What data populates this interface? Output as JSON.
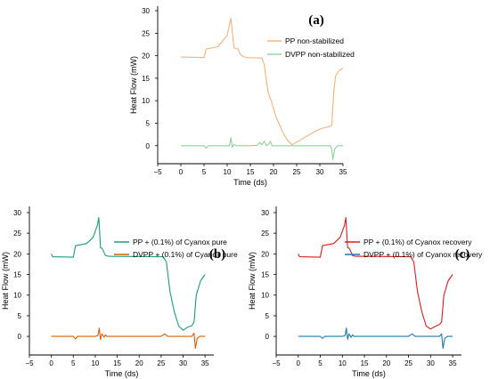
{
  "chart_data": [
    {
      "type": "line",
      "panel_label": "(a)",
      "xlabel": "Time (ds)",
      "ylabel": "Heat Flow (mW)",
      "xlim": [
        -5,
        35
      ],
      "ylim": [
        -4,
        31
      ],
      "xticks": [
        -5,
        0,
        5,
        10,
        15,
        20,
        25,
        30,
        35
      ],
      "yticks": [
        0,
        5,
        10,
        15,
        20,
        25,
        30
      ],
      "legend_position": "top-right",
      "series": [
        {
          "name": "PP non-stabilized",
          "color": "#f7b27a",
          "x": [
            0,
            5,
            5.5,
            8,
            10,
            10.5,
            10.8,
            11.2,
            11.5,
            12.3,
            12.8,
            13.5,
            14.2,
            17.5,
            18,
            18.8,
            19.5,
            20.5,
            22,
            23,
            24,
            25,
            27,
            29,
            30,
            31,
            32,
            32.6,
            33,
            33.4,
            34,
            35
          ],
          "y": [
            19.7,
            19.6,
            21.5,
            22,
            24.5,
            27,
            28.3,
            24.5,
            21.7,
            21.5,
            20.3,
            19.8,
            19.6,
            19.5,
            18,
            12,
            10,
            6.5,
            3,
            1.2,
            0.2,
            0.8,
            2,
            3.2,
            3.7,
            4,
            4.2,
            4.6,
            12,
            15.5,
            16.5,
            17.3
          ]
        },
        {
          "name": "DVPP non-stabilized",
          "color": "#8fd19c",
          "x": [
            0,
            5,
            5.5,
            6,
            10,
            10.5,
            10.8,
            11.1,
            11.5,
            12,
            15,
            16.5,
            17,
            17.5,
            18,
            18.5,
            19,
            19.3,
            19.7,
            20,
            25,
            30,
            32.3,
            32.6,
            32.8,
            33.2,
            33.8,
            35
          ],
          "y": [
            0,
            0,
            -0.5,
            0,
            0,
            0,
            1.8,
            -0.3,
            0.3,
            0,
            0,
            0.1,
            0.7,
            0.2,
            1,
            0,
            0.4,
            1,
            0,
            0,
            0,
            0,
            0,
            -1,
            -3.1,
            -0.8,
            0,
            0
          ]
        }
      ]
    },
    {
      "type": "line",
      "panel_label": "(b)",
      "xlabel": "Time (ds)",
      "ylabel": "Heat Flow (mW)",
      "xlim": [
        -5,
        37
      ],
      "ylim": [
        -4.5,
        31.5
      ],
      "xticks": [
        -5,
        0,
        5,
        10,
        15,
        20,
        25,
        30,
        35
      ],
      "yticks": [
        0,
        5,
        10,
        15,
        20,
        25,
        30
      ],
      "legend_position": "top-right",
      "series": [
        {
          "name": "PP + (0.1%) of Cyanox pure",
          "color": "#1a9e77",
          "x": [
            0,
            0.3,
            5,
            5.5,
            8,
            9.5,
            10.5,
            10.8,
            11.2,
            11.6,
            12.3,
            13,
            25.5,
            26.2,
            27,
            28,
            29,
            30,
            31,
            32,
            32.5,
            33,
            34,
            35
          ],
          "y": [
            20,
            19.3,
            19.2,
            22,
            22.5,
            24,
            27,
            28.8,
            21.5,
            21.3,
            19.6,
            19.4,
            19.3,
            18,
            11,
            6,
            2.5,
            1.5,
            2.2,
            2.6,
            3.5,
            10,
            13.5,
            15
          ]
        },
        {
          "name": "DVPP + (0.1%) of Cyanox pure",
          "color": "#d95f02",
          "x": [
            0,
            5,
            5.5,
            6,
            10,
            10.6,
            10.9,
            11.2,
            11.5,
            12,
            12.3,
            12.6,
            25,
            25.8,
            26.5,
            30,
            32,
            32.5,
            32.8,
            33.2,
            33.8,
            35
          ],
          "y": [
            0,
            0,
            -0.6,
            0,
            0,
            0.2,
            2,
            -0.8,
            0.6,
            -0.2,
            0.4,
            0,
            0,
            0.6,
            0,
            0,
            0,
            0.8,
            -2.9,
            -0.5,
            0,
            0
          ]
        }
      ]
    },
    {
      "type": "line",
      "panel_label": "(c)",
      "xlabel": "Time (ds)",
      "ylabel": "Heat Flow (mW)",
      "xlim": [
        -5,
        37
      ],
      "ylim": [
        -4.5,
        31.5
      ],
      "xticks": [
        -5,
        0,
        5,
        10,
        15,
        20,
        25,
        30,
        35
      ],
      "yticks": [
        0,
        5,
        10,
        15,
        20,
        25,
        30
      ],
      "legend_position": "top-right",
      "series": [
        {
          "name": "PP + (0.1%) of Cyanox recovery",
          "color": "#e31a1c",
          "x": [
            0,
            0.3,
            5,
            5.5,
            8,
            9.5,
            10.5,
            10.8,
            11.2,
            11.6,
            12.3,
            13,
            25.5,
            26.2,
            27,
            28,
            29,
            30,
            31,
            32,
            32.5,
            33,
            34,
            35
          ],
          "y": [
            20,
            19.3,
            19.2,
            22,
            22.5,
            24,
            27,
            28.8,
            21.5,
            21.3,
            19.6,
            19.4,
            19.3,
            18,
            11,
            6,
            2.5,
            1.8,
            2.4,
            2.9,
            3.5,
            10,
            13.5,
            15
          ]
        },
        {
          "name": "DVPP + (0.1%) of Cyanox recovery",
          "color": "#1f78b4",
          "x": [
            0,
            5,
            5.5,
            6,
            10,
            10.6,
            10.9,
            11.2,
            11.5,
            12,
            12.3,
            12.6,
            25,
            25.8,
            26.5,
            30,
            32,
            32.5,
            32.8,
            33.2,
            33.8,
            35
          ],
          "y": [
            0,
            0,
            -0.5,
            0,
            0,
            0.2,
            2,
            -0.7,
            0.6,
            -0.2,
            0.4,
            0,
            0,
            0.6,
            0,
            0,
            0,
            0.6,
            -2.9,
            -0.5,
            0,
            0
          ]
        }
      ]
    }
  ]
}
